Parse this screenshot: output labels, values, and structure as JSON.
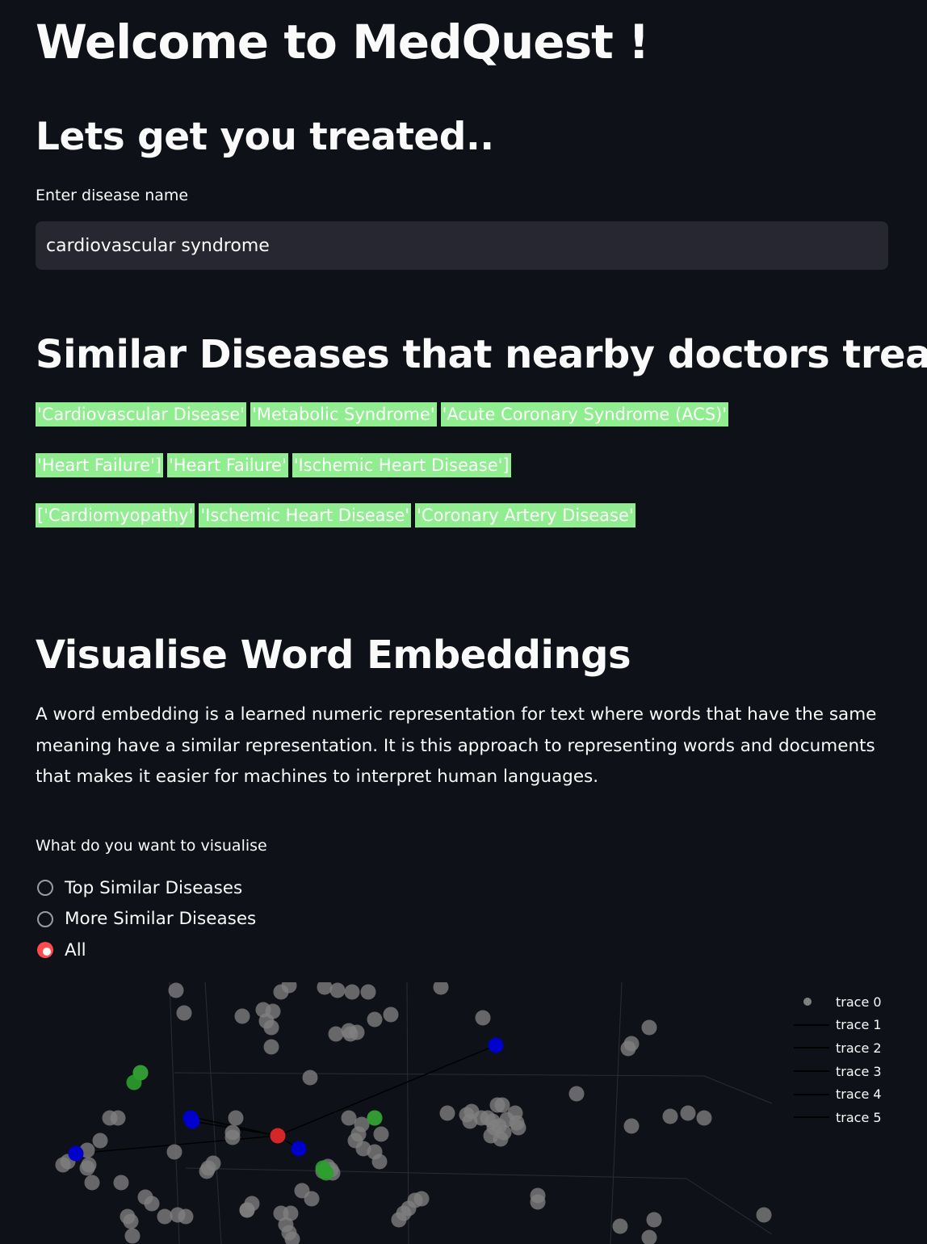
{
  "page": {
    "title": "Welcome to MedQuest !",
    "subtitle": "Lets get you treated.."
  },
  "search": {
    "label": "Enter disease name",
    "value": "cardiovascular syndrome"
  },
  "similar": {
    "heading": "Similar Diseases that nearby doctors treat:",
    "chip_color": "#90ee90",
    "rows": [
      [
        "'Cardiovascular Disease'",
        "'Metabolic Syndrome'",
        "'Acute Coronary Syndrome (ACS)'"
      ],
      [
        "'Heart Failure']",
        "'Heart Failure'",
        "'Ischemic Heart Disease']"
      ],
      [
        "['Cardiomyopathy'",
        "'Ischemic Heart Disease'",
        "'Coronary Artery Disease'"
      ]
    ]
  },
  "embeddings": {
    "heading": "Visualise Word Embeddings",
    "description": "A word embedding is a learned numeric representation for text where words that have the same meaning have a similar representation. It is this approach to representing words and documents that makes it easier for machines to interpret human languages.",
    "radio_label": "What do you want to visualise",
    "options": [
      "Top Similar Diseases",
      "More Similar Diseases",
      "All"
    ],
    "selected_index": 2,
    "accent_color": "#ff4b4b"
  },
  "chart_data": {
    "type": "scatter",
    "legend_position": "top-right",
    "legend": [
      "trace 0",
      "trace 1",
      "trace 2",
      "trace 3",
      "trace 4",
      "trace 5"
    ],
    "colors": {
      "background": "#808080",
      "query": "#d62728",
      "top": "#0000cc",
      "more": "#2ca02c",
      "links": "#000000"
    }
  }
}
